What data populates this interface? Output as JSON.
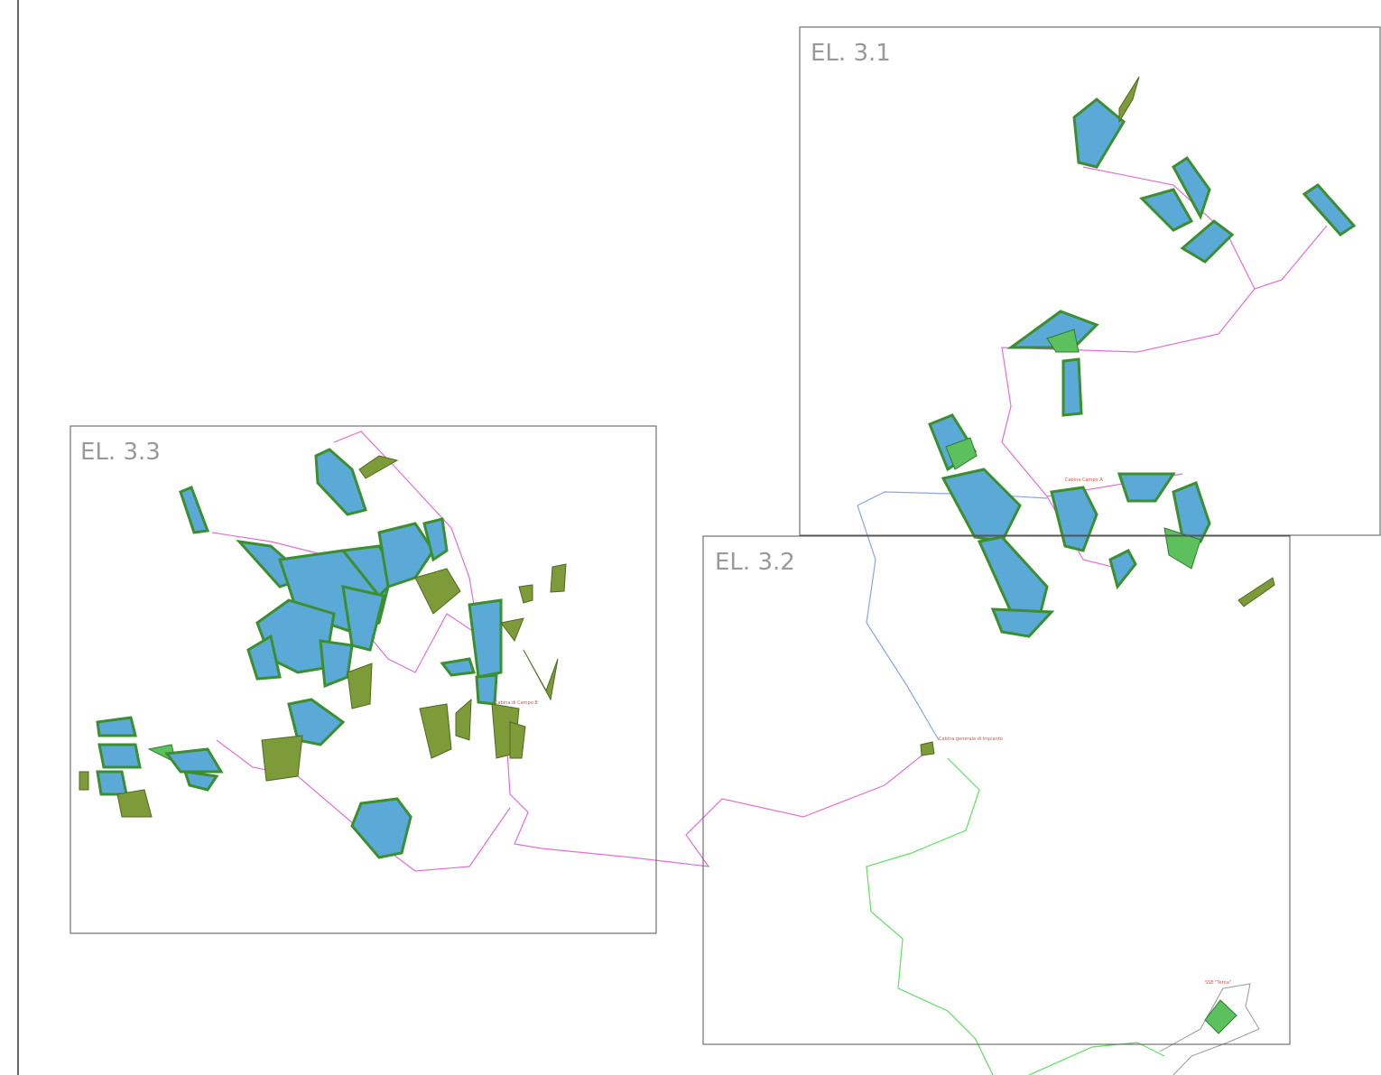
{
  "frames": [
    {
      "label": "EL. 3.1"
    },
    {
      "label": "EL. 3.2"
    },
    {
      "label": "EL. 3.3"
    }
  ],
  "labels": [
    {
      "text": "Cabina Campo A"
    },
    {
      "text": "Cabina generale di impianto"
    },
    {
      "text": "SSE \"Terna\""
    },
    {
      "text": "Cabina di Campo B"
    }
  ]
}
